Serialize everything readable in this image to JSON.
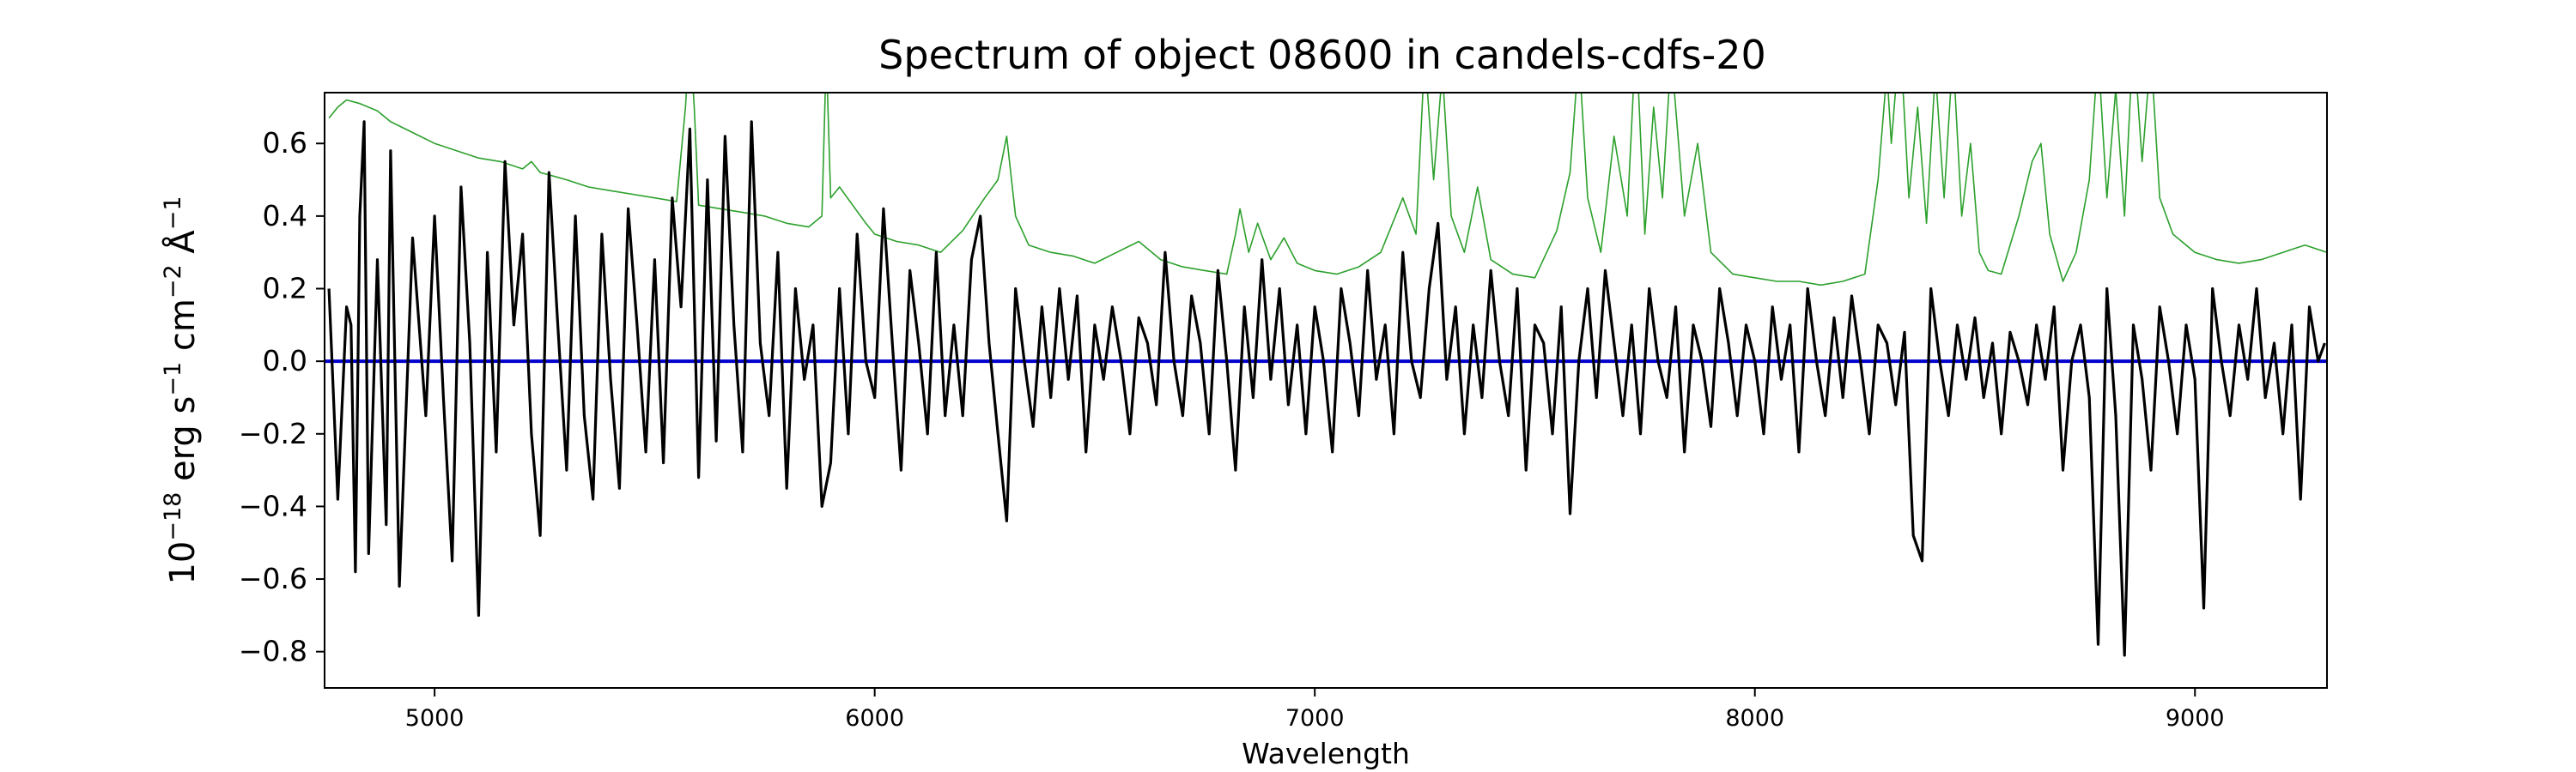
{
  "chart_data": {
    "type": "line",
    "title": "Spectrum of object 08600 in candels-cdfs-20",
    "xlabel": "Wavelength",
    "ylabel": {
      "base": "10",
      "exp1": "−18",
      "unit1": " erg s",
      "exp2": "−1",
      "unit2": " cm",
      "exp3": "−2",
      "unit3": " Å",
      "exp4": "−1"
    },
    "xlim": [
      4750,
      9300
    ],
    "ylim": [
      -0.9,
      0.74
    ],
    "xticks": [
      5000,
      6000,
      7000,
      8000,
      9000
    ],
    "xtick_labels": [
      "5000",
      "6000",
      "7000",
      "8000",
      "9000"
    ],
    "yticks": [
      0.6,
      0.4,
      0.2,
      0.0,
      -0.2,
      -0.4,
      -0.6,
      -0.8
    ],
    "ytick_labels": [
      "0.6",
      "0.4",
      "0.2",
      "0.0",
      "−0.2",
      "−0.4",
      "−0.6",
      "−0.8"
    ],
    "grid": false,
    "series": [
      {
        "role": "error",
        "color": "#2ca02c",
        "x": [
          4760,
          4780,
          4800,
          4830,
          4870,
          4900,
          4950,
          5000,
          5050,
          5100,
          5150,
          5200,
          5220,
          5240,
          5270,
          5300,
          5350,
          5400,
          5450,
          5500,
          5550,
          5570,
          5580,
          5590,
          5600,
          5650,
          5700,
          5750,
          5800,
          5850,
          5880,
          5890,
          5900,
          5920,
          5950,
          5980,
          6000,
          6050,
          6100,
          6150,
          6200,
          6250,
          6280,
          6300,
          6320,
          6350,
          6400,
          6450,
          6500,
          6550,
          6600,
          6650,
          6700,
          6750,
          6800,
          6820,
          6830,
          6850,
          6870,
          6900,
          6930,
          6960,
          7000,
          7050,
          7100,
          7150,
          7200,
          7230,
          7250,
          7270,
          7290,
          7310,
          7340,
          7370,
          7400,
          7450,
          7500,
          7550,
          7580,
          7600,
          7620,
          7650,
          7680,
          7710,
          7730,
          7750,
          7770,
          7790,
          7810,
          7840,
          7870,
          7900,
          7950,
          8000,
          8050,
          8100,
          8150,
          8200,
          8250,
          8280,
          8300,
          8310,
          8330,
          8350,
          8370,
          8390,
          8410,
          8430,
          8450,
          8470,
          8490,
          8510,
          8530,
          8560,
          8600,
          8630,
          8650,
          8670,
          8700,
          8730,
          8760,
          8780,
          8800,
          8820,
          8840,
          8860,
          8880,
          8900,
          8920,
          8950,
          9000,
          9050,
          9100,
          9150,
          9200,
          9250,
          9300
        ],
        "y": [
          0.67,
          0.7,
          0.72,
          0.71,
          0.69,
          0.66,
          0.63,
          0.6,
          0.58,
          0.56,
          0.55,
          0.53,
          0.55,
          0.52,
          0.51,
          0.5,
          0.48,
          0.47,
          0.46,
          0.45,
          0.44,
          0.7,
          0.9,
          0.7,
          0.43,
          0.42,
          0.41,
          0.4,
          0.38,
          0.37,
          0.4,
          0.85,
          0.45,
          0.48,
          0.43,
          0.38,
          0.35,
          0.33,
          0.32,
          0.3,
          0.36,
          0.45,
          0.5,
          0.62,
          0.4,
          0.32,
          0.3,
          0.29,
          0.27,
          0.3,
          0.33,
          0.28,
          0.26,
          0.25,
          0.24,
          0.35,
          0.42,
          0.3,
          0.38,
          0.28,
          0.34,
          0.27,
          0.25,
          0.24,
          0.26,
          0.3,
          0.45,
          0.35,
          0.85,
          0.5,
          0.8,
          0.4,
          0.3,
          0.48,
          0.28,
          0.24,
          0.23,
          0.36,
          0.52,
          0.85,
          0.45,
          0.3,
          0.62,
          0.4,
          0.9,
          0.35,
          0.7,
          0.45,
          0.85,
          0.4,
          0.6,
          0.3,
          0.24,
          0.23,
          0.22,
          0.22,
          0.21,
          0.22,
          0.24,
          0.5,
          0.8,
          0.6,
          0.9,
          0.45,
          0.7,
          0.38,
          0.8,
          0.45,
          0.85,
          0.4,
          0.6,
          0.3,
          0.25,
          0.24,
          0.4,
          0.55,
          0.6,
          0.35,
          0.22,
          0.3,
          0.5,
          0.85,
          0.45,
          0.75,
          0.4,
          0.9,
          0.55,
          0.85,
          0.45,
          0.35,
          0.3,
          0.28,
          0.27,
          0.28,
          0.3,
          0.32,
          0.3
        ]
      },
      {
        "role": "model",
        "color": "#0000cc",
        "x": [
          4750,
          9300
        ],
        "y": [
          0.0,
          0.0
        ]
      },
      {
        "role": "flux",
        "color": "#000000",
        "x": [
          4760,
          4780,
          4800,
          4810,
          4820,
          4830,
          4840,
          4850,
          4870,
          4890,
          4900,
          4920,
          4950,
          4980,
          5000,
          5020,
          5040,
          5060,
          5080,
          5100,
          5120,
          5140,
          5160,
          5180,
          5200,
          5220,
          5240,
          5260,
          5280,
          5300,
          5320,
          5340,
          5360,
          5380,
          5400,
          5420,
          5440,
          5460,
          5480,
          5500,
          5520,
          5540,
          5560,
          5580,
          5600,
          5620,
          5640,
          5660,
          5680,
          5700,
          5720,
          5740,
          5760,
          5780,
          5800,
          5820,
          5840,
          5860,
          5880,
          5900,
          5920,
          5940,
          5960,
          5980,
          6000,
          6020,
          6040,
          6060,
          6080,
          6100,
          6120,
          6140,
          6160,
          6180,
          6200,
          6220,
          6240,
          6260,
          6280,
          6300,
          6320,
          6340,
          6360,
          6380,
          6400,
          6420,
          6440,
          6460,
          6480,
          6500,
          6520,
          6540,
          6560,
          6580,
          6600,
          6620,
          6640,
          6660,
          6680,
          6700,
          6720,
          6740,
          6760,
          6780,
          6800,
          6820,
          6840,
          6860,
          6880,
          6900,
          6920,
          6940,
          6960,
          6980,
          7000,
          7020,
          7040,
          7060,
          7080,
          7100,
          7120,
          7140,
          7160,
          7180,
          7200,
          7220,
          7240,
          7260,
          7280,
          7300,
          7320,
          7340,
          7360,
          7380,
          7400,
          7420,
          7440,
          7460,
          7480,
          7500,
          7520,
          7540,
          7560,
          7580,
          7600,
          7620,
          7640,
          7660,
          7680,
          7700,
          7720,
          7740,
          7760,
          7780,
          7800,
          7820,
          7840,
          7860,
          7880,
          7900,
          7920,
          7940,
          7960,
          7980,
          8000,
          8020,
          8040,
          8060,
          8080,
          8100,
          8120,
          8140,
          8160,
          8180,
          8200,
          8220,
          8240,
          8260,
          8280,
          8300,
          8320,
          8340,
          8360,
          8380,
          8400,
          8420,
          8440,
          8460,
          8480,
          8500,
          8520,
          8540,
          8560,
          8580,
          8600,
          8620,
          8640,
          8660,
          8680,
          8700,
          8720,
          8740,
          8760,
          8780,
          8800,
          8820,
          8840,
          8860,
          8880,
          8900,
          8920,
          8940,
          8960,
          8980,
          9000,
          9020,
          9040,
          9060,
          9080,
          9100,
          9120,
          9140,
          9160,
          9180,
          9200,
          9220,
          9240,
          9260,
          9280,
          9295
        ],
        "y": [
          0.2,
          -0.38,
          0.15,
          0.1,
          -0.58,
          0.4,
          0.66,
          -0.53,
          0.28,
          -0.45,
          0.58,
          -0.62,
          0.34,
          -0.15,
          0.4,
          -0.1,
          -0.55,
          0.48,
          0.05,
          -0.7,
          0.3,
          -0.25,
          0.55,
          0.1,
          0.35,
          -0.2,
          -0.48,
          0.52,
          0.1,
          -0.3,
          0.4,
          -0.15,
          -0.38,
          0.35,
          -0.05,
          -0.35,
          0.42,
          0.1,
          -0.25,
          0.28,
          -0.28,
          0.45,
          0.15,
          0.64,
          -0.32,
          0.5,
          -0.22,
          0.62,
          0.1,
          -0.25,
          0.66,
          0.05,
          -0.15,
          0.3,
          -0.35,
          0.2,
          -0.05,
          0.1,
          -0.4,
          -0.28,
          0.2,
          -0.2,
          0.35,
          0.0,
          -0.1,
          0.42,
          0.05,
          -0.3,
          0.25,
          0.05,
          -0.2,
          0.3,
          -0.15,
          0.1,
          -0.15,
          0.28,
          0.4,
          0.05,
          -0.2,
          -0.44,
          0.2,
          0.0,
          -0.18,
          0.15,
          -0.1,
          0.2,
          -0.05,
          0.18,
          -0.25,
          0.1,
          -0.05,
          0.15,
          0.0,
          -0.2,
          0.12,
          0.05,
          -0.12,
          0.3,
          0.0,
          -0.15,
          0.18,
          0.05,
          -0.2,
          0.25,
          0.0,
          -0.3,
          0.15,
          -0.1,
          0.28,
          -0.05,
          0.2,
          -0.12,
          0.1,
          -0.2,
          0.15,
          0.0,
          -0.25,
          0.2,
          0.05,
          -0.15,
          0.25,
          -0.05,
          0.1,
          -0.2,
          0.3,
          0.0,
          -0.1,
          0.2,
          0.38,
          -0.05,
          0.15,
          -0.2,
          0.1,
          -0.1,
          0.25,
          0.0,
          -0.15,
          0.2,
          -0.3,
          0.1,
          0.05,
          -0.2,
          0.15,
          -0.42,
          0.0,
          0.2,
          -0.1,
          0.25,
          0.05,
          -0.15,
          0.1,
          -0.2,
          0.2,
          0.0,
          -0.1,
          0.15,
          -0.25,
          0.1,
          0.0,
          -0.18,
          0.2,
          0.05,
          -0.15,
          0.1,
          0.0,
          -0.2,
          0.15,
          -0.05,
          0.1,
          -0.25,
          0.2,
          0.0,
          -0.15,
          0.12,
          -0.1,
          0.18,
          0.0,
          -0.2,
          0.1,
          0.05,
          -0.12,
          0.08,
          -0.48,
          -0.55,
          0.2,
          0.0,
          -0.15,
          0.1,
          -0.05,
          0.12,
          -0.1,
          0.05,
          -0.2,
          0.08,
          0.0,
          -0.12,
          0.1,
          -0.05,
          0.15,
          -0.3,
          0.0,
          0.1,
          -0.1,
          -0.78,
          0.2,
          -0.15,
          -0.81,
          0.1,
          -0.05,
          -0.3,
          0.15,
          0.0,
          -0.2,
          0.1,
          -0.05,
          -0.68,
          0.2,
          0.0,
          -0.15,
          0.1,
          -0.05,
          0.2,
          -0.1,
          0.05,
          -0.2,
          0.1,
          -0.38,
          0.15,
          0.0,
          0.05
        ]
      }
    ]
  }
}
